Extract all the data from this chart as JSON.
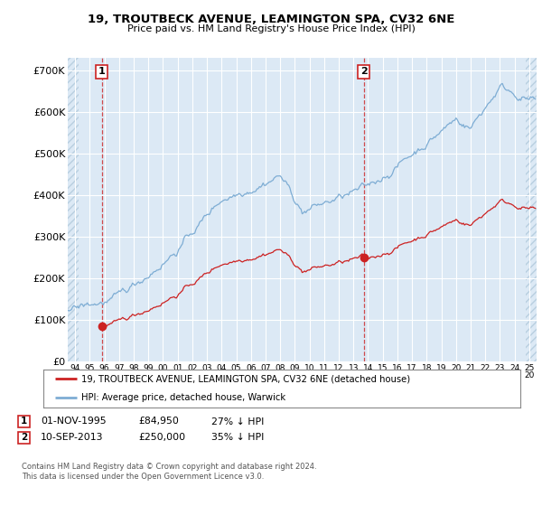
{
  "title_line1": "19, TROUTBECK AVENUE, LEAMINGTON SPA, CV32 6NE",
  "title_line2": "Price paid vs. HM Land Registry's House Price Index (HPI)",
  "ylim": [
    0,
    730000
  ],
  "yticks": [
    0,
    100000,
    200000,
    300000,
    400000,
    500000,
    600000,
    700000
  ],
  "ytick_labels": [
    "£0",
    "£100K",
    "£200K",
    "£300K",
    "£400K",
    "£500K",
    "£600K",
    "£700K"
  ],
  "hpi_color": "#7eadd4",
  "price_color": "#cc2222",
  "t1_year": 1995.833,
  "t1_price": 84950,
  "t2_year": 2013.708,
  "t2_price": 250000,
  "legend_label1": "19, TROUTBECK AVENUE, LEAMINGTON SPA, CV32 6NE (detached house)",
  "legend_label2": "HPI: Average price, detached house, Warwick",
  "footnote": "Contains HM Land Registry data © Crown copyright and database right 2024.\nThis data is licensed under the Open Government Licence v3.0.",
  "plot_bg_color": "#dce9f5",
  "hatch_color": "#b8cfe0",
  "grid_color": "#ffffff",
  "xmin": 1993.5,
  "xmax": 2025.5
}
